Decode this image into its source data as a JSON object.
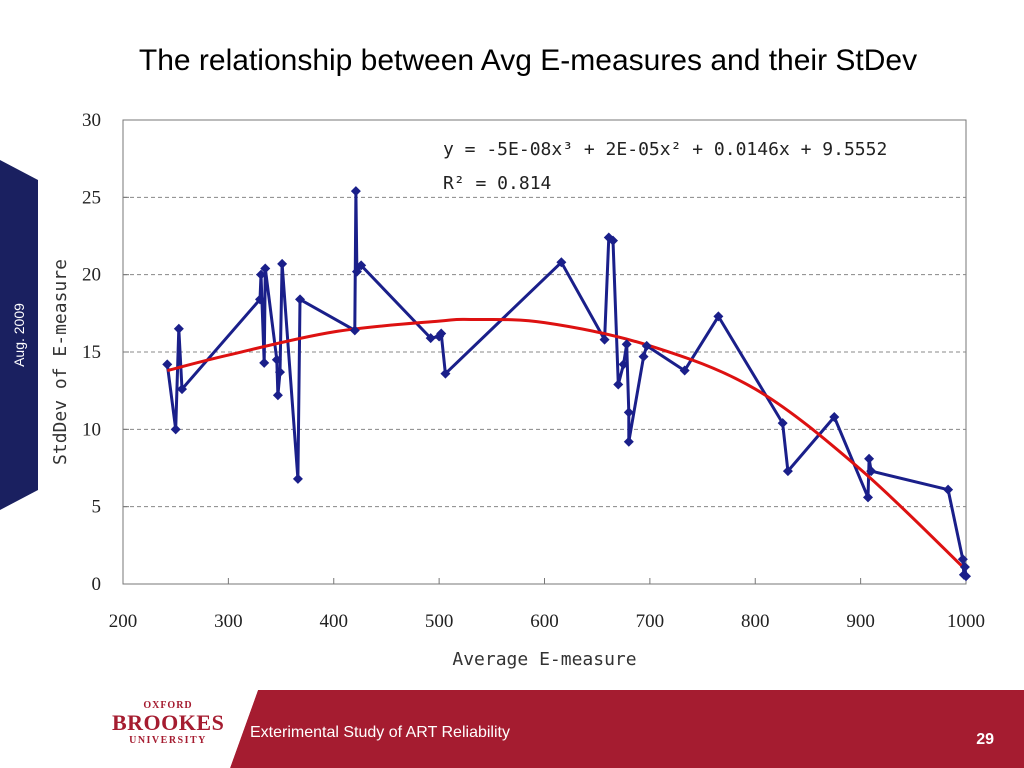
{
  "title": "The relationship between Avg E-measures and their StDev",
  "side_tab": {
    "text": "Aug. 2009",
    "color": "#1a2060"
  },
  "footer": {
    "text": "Exterimental Study of ART Reliability",
    "page_number": "29",
    "band_color": "#a51c30",
    "logo": {
      "line1": "OXFORD",
      "line2": "BROOKES",
      "line3": "UNIVERSITY"
    }
  },
  "chart_data": {
    "type": "line",
    "xlabel": "Average E-measure",
    "ylabel": "StdDev of E-measure",
    "xlim": [
      200,
      1000
    ],
    "ylim": [
      0,
      30
    ],
    "x_ticks": [
      "200",
      "300",
      "400",
      "500",
      "600",
      "700",
      "800",
      "900",
      "1000"
    ],
    "y_ticks": [
      "0",
      "5",
      "10",
      "15",
      "20",
      "25",
      "30"
    ],
    "grid": "horizontal-dashed",
    "series": [
      {
        "color": "#1a1f8a",
        "marker": "diamond",
        "points": [
          [
            242,
            14.2
          ],
          [
            250,
            10.0
          ],
          [
            253,
            16.5
          ],
          [
            256,
            12.6
          ],
          [
            330,
            18.4
          ],
          [
            331,
            20.0
          ],
          [
            334,
            14.3
          ],
          [
            335,
            20.4
          ],
          [
            346,
            14.5
          ],
          [
            347,
            12.2
          ],
          [
            349,
            13.7
          ],
          [
            351,
            20.7
          ],
          [
            366,
            6.8
          ],
          [
            368,
            18.4
          ],
          [
            420,
            16.4
          ],
          [
            421,
            25.4
          ],
          [
            422,
            20.2
          ],
          [
            426,
            20.6
          ],
          [
            492,
            15.9
          ],
          [
            500,
            16.0
          ],
          [
            502,
            16.2
          ],
          [
            506,
            13.6
          ],
          [
            616,
            20.8
          ],
          [
            657,
            15.8
          ],
          [
            661,
            22.4
          ],
          [
            665,
            22.2
          ],
          [
            670,
            12.9
          ],
          [
            675,
            14.2
          ],
          [
            678,
            15.5
          ],
          [
            680,
            11.1
          ],
          [
            680,
            9.2
          ],
          [
            694,
            14.7
          ],
          [
            697,
            15.4
          ],
          [
            733,
            13.8
          ],
          [
            765,
            17.3
          ],
          [
            826,
            10.4
          ],
          [
            831,
            7.3
          ],
          [
            875,
            10.8
          ],
          [
            907,
            5.6
          ],
          [
            908,
            8.1
          ],
          [
            910,
            7.3
          ],
          [
            983,
            6.1
          ],
          [
            997,
            1.6
          ],
          [
            998,
            0.6
          ],
          [
            999,
            1.1
          ],
          [
            1000,
            0.5
          ]
        ]
      },
      {
        "color": "#dd1111",
        "type": "trendline",
        "equation": "y = -5E-08x³ + 2E-05x² + 0.0146x + 9.5552",
        "r2": "R² = 0.814",
        "x_range": [
          242,
          1000
        ],
        "points": [
          [
            242,
            13.8
          ],
          [
            300,
            14.8
          ],
          [
            400,
            16.3
          ],
          [
            500,
            17.0
          ],
          [
            530,
            17.1
          ],
          [
            600,
            16.9
          ],
          [
            700,
            15.4
          ],
          [
            800,
            12.6
          ],
          [
            900,
            7.4
          ],
          [
            1000,
            0.9
          ]
        ]
      }
    ]
  }
}
